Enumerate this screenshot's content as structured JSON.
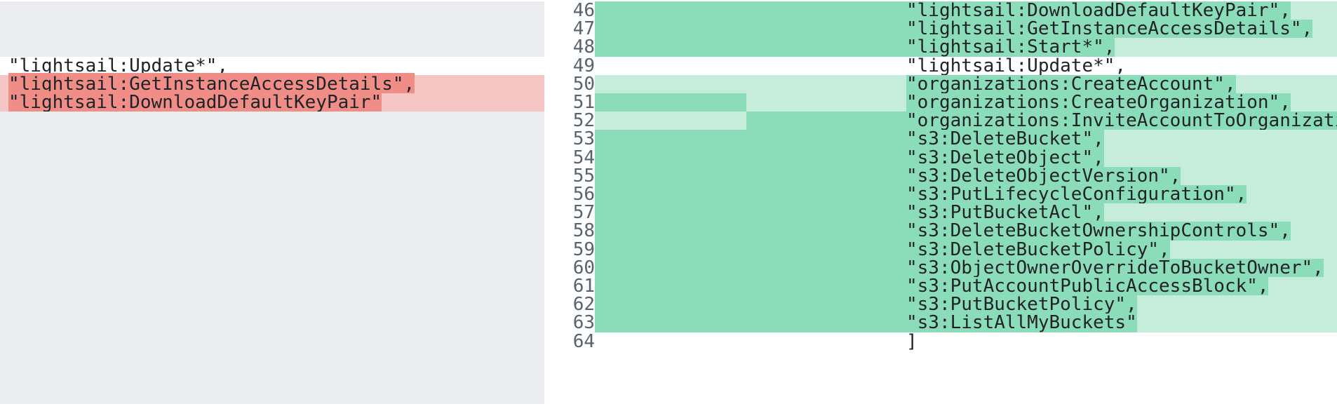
{
  "left_pane": {
    "lines": [
      {
        "kind": "empty"
      },
      {
        "kind": "empty"
      },
      {
        "kind": "empty"
      },
      {
        "kind": "context",
        "text": "\"lightsail:Update*\","
      },
      {
        "kind": "deleted",
        "text": "\"lightsail:GetInstanceAccessDetails\",",
        "highlight": true
      },
      {
        "kind": "deleted",
        "text": "\"lightsail:DownloadDefaultKeyPair\"",
        "highlight": true
      },
      {
        "kind": "empty"
      },
      {
        "kind": "empty"
      },
      {
        "kind": "empty"
      },
      {
        "kind": "empty"
      },
      {
        "kind": "empty"
      },
      {
        "kind": "empty"
      },
      {
        "kind": "empty"
      },
      {
        "kind": "empty"
      },
      {
        "kind": "empty"
      },
      {
        "kind": "empty"
      },
      {
        "kind": "empty"
      },
      {
        "kind": "empty"
      }
    ]
  },
  "right_pane": {
    "lines": [
      {
        "num": "46",
        "kind": "added",
        "text": "\"lightsail:DownloadDefaultKeyPair\",",
        "hl": "full"
      },
      {
        "num": "47",
        "kind": "added",
        "text": "\"lightsail:GetInstanceAccessDetails\",",
        "hl": "full"
      },
      {
        "num": "48",
        "kind": "added",
        "text": "\"lightsail:Start*\",",
        "hl": "full"
      },
      {
        "num": "49",
        "kind": "context",
        "text": "\"lightsail:Update*\",",
        "hl": "none"
      },
      {
        "num": "50",
        "kind": "added",
        "text": "\"organizations:CreateAccount\",",
        "hl": "text"
      },
      {
        "num": "51",
        "kind": "added",
        "text": "\"organizations:CreateOrganization\",",
        "hl": "partial-left-text"
      },
      {
        "num": "52",
        "kind": "added",
        "text": "\"organizations:InviteAccountToOrganization\",",
        "hl": "mid-text"
      },
      {
        "num": "53",
        "kind": "added",
        "text": "\"s3:DeleteBucket\",",
        "hl": "full"
      },
      {
        "num": "54",
        "kind": "added",
        "text": "\"s3:DeleteObject\",",
        "hl": "full"
      },
      {
        "num": "55",
        "kind": "added",
        "text": "\"s3:DeleteObjectVersion\",",
        "hl": "full"
      },
      {
        "num": "56",
        "kind": "added",
        "text": "\"s3:PutLifecycleConfiguration\",",
        "hl": "full"
      },
      {
        "num": "57",
        "kind": "added",
        "text": "\"s3:PutBucketAcl\",",
        "hl": "full"
      },
      {
        "num": "58",
        "kind": "added",
        "text": "\"s3:DeleteBucketOwnershipControls\",",
        "hl": "full"
      },
      {
        "num": "59",
        "kind": "added",
        "text": "\"s3:DeleteBucketPolicy\",",
        "hl": "full"
      },
      {
        "num": "60",
        "kind": "added",
        "text": "\"s3:ObjectOwnerOverrideToBucketOwner\",",
        "hl": "full"
      },
      {
        "num": "61",
        "kind": "added",
        "text": "\"s3:PutAccountPublicAccessBlock\",",
        "hl": "full"
      },
      {
        "num": "62",
        "kind": "added",
        "text": "\"s3:PutBucketPolicy\",",
        "hl": "full"
      },
      {
        "num": "63",
        "kind": "added",
        "text": "\"s3:ListAllMyBuckets\"",
        "hl": "full"
      },
      {
        "num": "64",
        "kind": "context",
        "text": "]",
        "hl": "none"
      }
    ]
  },
  "colors": {
    "empty_bg": "#ebecef",
    "deleted_bg": "#f5c6c3",
    "deleted_hl": "#ef8d86",
    "added_bg": "#c6ecdb",
    "added_hl": "#8bdcb9",
    "line_number": "#59636e"
  }
}
